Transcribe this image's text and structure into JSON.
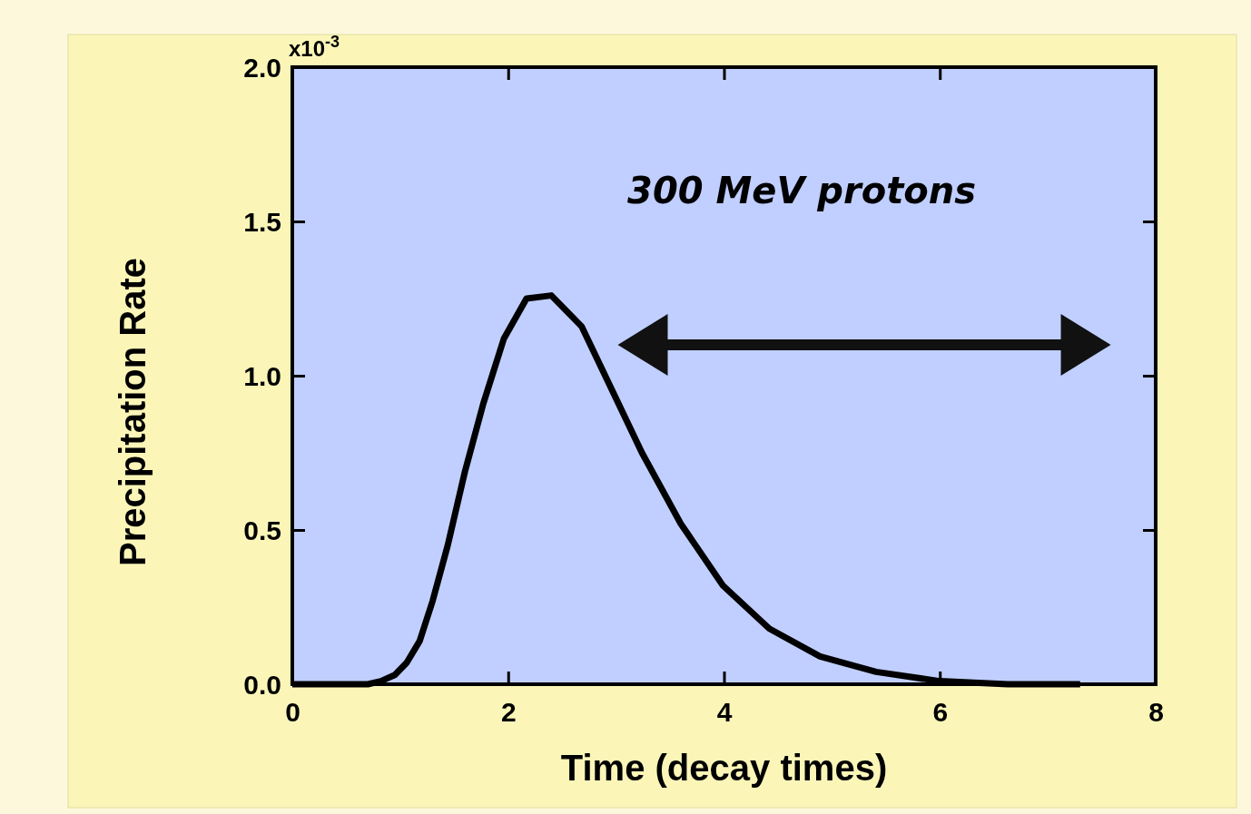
{
  "chart_data": {
    "type": "line",
    "xlabel": "Time (decay times)",
    "ylabel": "Precipitation Rate",
    "annotations": [
      "x10$^{-3}$",
      "300 MeV protons"
    ],
    "x": [
      0,
      0.7,
      0.82,
      0.95,
      1.06,
      1.18,
      1.3,
      1.44,
      1.6,
      1.77,
      1.96,
      2.17,
      2.4,
      2.68,
      2.94,
      3.24,
      3.6,
      3.99,
      4.42,
      4.89,
      5.41,
      6.0,
      6.63,
      7.3
    ],
    "series": [
      {
        "color": "#000000",
        "values": [
          0,
          0,
          0.01,
          0.03,
          0.07,
          0.14,
          0.27,
          0.45,
          0.69,
          0.91,
          1.12,
          1.25,
          1.26,
          1.16,
          0.97,
          0.75,
          0.52,
          0.32,
          0.18,
          0.09,
          0.04,
          0.01,
          0.0,
          0
        ]
      }
    ],
    "xlim": [
      0,
      8
    ],
    "xticks": [
      0,
      2,
      4,
      6,
      8
    ],
    "ylim": [
      0,
      2.0
    ],
    "yticks": [
      {
        "value": 0,
        "label": "0.0"
      },
      {
        "value": 0.5,
        "label": "0.5"
      },
      {
        "value": 1.0,
        "label": "1.0"
      },
      {
        "value": 1.5,
        "label": "1.5"
      },
      {
        "value": 2.0,
        "label": "2.0"
      }
    ],
    "grid": false,
    "marker": "none",
    "line_style": "solid"
  }
}
